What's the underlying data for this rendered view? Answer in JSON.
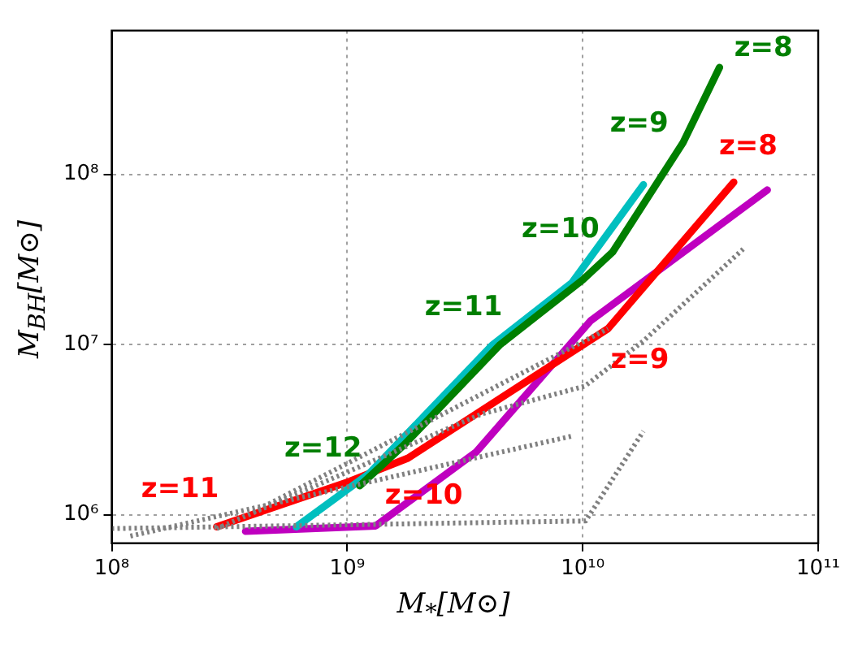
{
  "chart_data": {
    "type": "line",
    "xlabel": "M$_{*}$[M⊙]",
    "ylabel": "M$_{BH}$[M⊙]",
    "log": "xy",
    "grid": true,
    "marker": "none",
    "xlim": [
      100000000.0,
      100000000000.0
    ],
    "ylim": [
      680000,
      700000000
    ],
    "xticks": [
      {
        "value": 100000000.0,
        "label": "10⁸"
      },
      {
        "value": 1000000000.0,
        "label": "10⁹"
      },
      {
        "value": 10000000000.0,
        "label": "10¹⁰"
      },
      {
        "value": 100000000000.0,
        "label": "10¹¹"
      }
    ],
    "yticks": [
      {
        "value": 1000000.0,
        "label": "10⁶"
      },
      {
        "value": 10000000.0,
        "label": "10⁷"
      },
      {
        "value": 100000000.0,
        "label": "10⁸"
      }
    ],
    "series": [
      {
        "color": "#808080",
        "line_style": "dotted",
        "x": [
          100000000.0,
          10300000000.0,
          18100000000.0
        ],
        "values": [
          830000,
          920000,
          3100000
        ]
      },
      {
        "color": "#808080",
        "line_style": "dotted",
        "x": [
          120000000.0,
          9000000000.0
        ],
        "values": [
          750000,
          2900000
        ]
      },
      {
        "color": "#808080",
        "line_style": "dotted",
        "x": [
          279000000.0,
          3700000000.0,
          10200000000.0,
          18100000000.0,
          48000000000.0
        ],
        "values": [
          830000,
          3900000,
          5700000,
          10500000,
          36400000
        ]
      },
      {
        "color": "#808080",
        "line_style": "dotted",
        "x": [
          400000000.0,
          12800000000.0
        ],
        "values": [
          1040000,
          12400000
        ]
      },
      {
        "color": "#007f00",
        "line_style": "solid",
        "x": [
          1130000000.0,
          1750000000.0,
          4460000000.0,
          10000000000.0,
          13400000000.0,
          26700000000.0,
          38100000000.0
        ],
        "values": [
          1480000,
          2590000,
          10000000,
          24000000,
          35000000,
          154000000,
          425000000
        ]
      },
      {
        "color": "#00bfbf",
        "line_style": "solid",
        "x": [
          608000000.0,
          1240000000.0,
          4120000000.0,
          8980000000.0,
          18100000000.0
        ],
        "values": [
          850000,
          1750000,
          9900000,
          23000000,
          87000000
        ]
      },
      {
        "color": "#ff0000",
        "line_style": "solid",
        "x": [
          279000000.0,
          1020000000.0,
          1810000000.0,
          12800000000.0,
          43800000000.0
        ],
        "values": [
          850000,
          1570000,
          2150000,
          12400000,
          90000000
        ]
      },
      {
        "color": "#bf00bf",
        "line_style": "solid",
        "x": [
          370000000.0,
          1320000000.0,
          3520000000.0,
          10800000000.0,
          60800000000.0
        ],
        "values": [
          800000,
          860000,
          2330000,
          13800000,
          81000000
        ]
      }
    ],
    "annotations": [
      {
        "text": "z=8",
        "x": 38100000000.0,
        "y": 425000000
      },
      {
        "text": "z=9",
        "x": 26700000000.0,
        "y": 154000000
      },
      {
        "text": "z=10",
        "x": 13400000000.0,
        "y": 35000000
      },
      {
        "text": "z=11",
        "x": 4460000000.0,
        "y": 10000000
      },
      {
        "text": "z=12",
        "x": 1130000000.0,
        "y": 1480000
      },
      {
        "text": "z=8",
        "x": 43800000000.0,
        "y": 90000000
      },
      {
        "text": "z=9",
        "x": 12800000000.0,
        "y": 12400000
      },
      {
        "text": "z=10",
        "x": 1810000000.0,
        "y": 2150000
      },
      {
        "text": "z=11",
        "x": 279000000.0,
        "y": 850000
      }
    ]
  }
}
